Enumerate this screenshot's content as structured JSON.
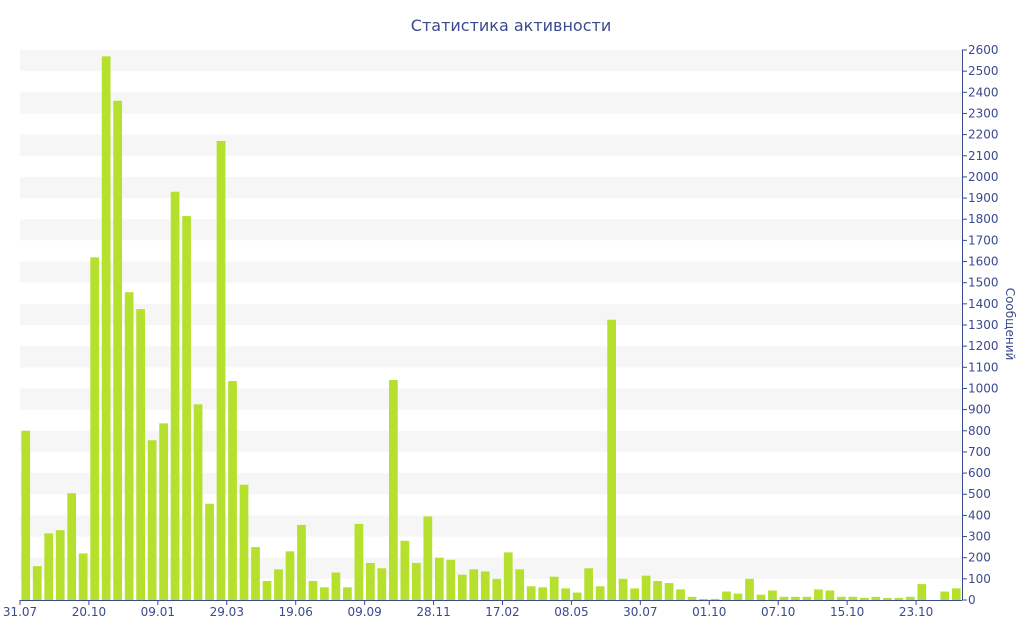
{
  "chart_data": {
    "type": "bar",
    "title": "Статистика активности",
    "xlabel": "",
    "ylabel": "Сообщений",
    "ylim": [
      0,
      2600
    ],
    "ytick_step": 100,
    "y_axis_side": "right",
    "grid": "alternating horizontal bands",
    "bar_color": "#b5e02e",
    "band_color": "#f6f6f6",
    "text_color": "#3b4a8c",
    "x_tick_labels": [
      {
        "label": "31.07",
        "index": 0
      },
      {
        "label": "20.10",
        "index": 6
      },
      {
        "label": "09.01",
        "index": 12
      },
      {
        "label": "29.03",
        "index": 18
      },
      {
        "label": "19.06",
        "index": 24
      },
      {
        "label": "09.09",
        "index": 30
      },
      {
        "label": "28.11",
        "index": 36
      },
      {
        "label": "17.02",
        "index": 42
      },
      {
        "label": "08.05",
        "index": 48
      },
      {
        "label": "30.07",
        "index": 54
      },
      {
        "label": "01.10",
        "index": 60
      },
      {
        "label": "07.10",
        "index": 66
      },
      {
        "label": "15.10",
        "index": 72
      },
      {
        "label": "23.10",
        "index": 78
      }
    ],
    "values": [
      800,
      160,
      315,
      330,
      505,
      220,
      1620,
      2570,
      2360,
      1455,
      1375,
      755,
      835,
      1930,
      1815,
      925,
      455,
      2170,
      1035,
      545,
      250,
      90,
      145,
      230,
      355,
      90,
      60,
      130,
      60,
      360,
      175,
      150,
      1040,
      280,
      175,
      395,
      200,
      190,
      120,
      145,
      135,
      100,
      225,
      145,
      65,
      60,
      110,
      55,
      35,
      150,
      65,
      1325,
      100,
      55,
      115,
      90,
      80,
      50,
      15,
      5,
      5,
      40,
      30,
      100,
      25,
      45,
      15,
      15,
      15,
      50,
      45,
      15,
      15,
      10,
      15,
      10,
      10,
      15,
      75,
      0,
      40,
      55
    ]
  }
}
